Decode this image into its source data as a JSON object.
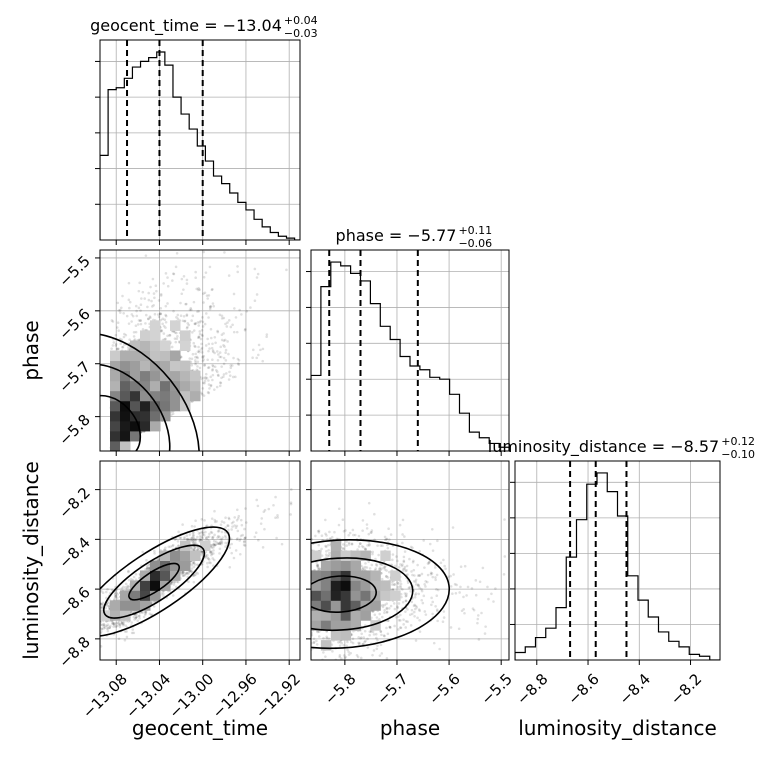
{
  "chart_data": {
    "type": "corner",
    "params": [
      "geocent_time",
      "phase",
      "luminosity_distance"
    ],
    "titles": {
      "geocent_time": {
        "prefix": "geocent_time = ",
        "value": "−13.04",
        "plus": "+0.04",
        "minus": "−0.03"
      },
      "phase": {
        "prefix": "phase = ",
        "value": "−5.77",
        "plus": "+0.11",
        "minus": "−0.06"
      },
      "luminosity_distance": {
        "prefix": "luminosity_distance = ",
        "value": "−8.57",
        "plus": "+0.12",
        "minus": "−0.10"
      }
    },
    "xlabels": {
      "geocent_time": "geocent_time",
      "phase": "phase",
      "luminosity_distance": "luminosity_distance"
    },
    "ylabels": {
      "phase": "phase",
      "luminosity_distance": "luminosity_distance"
    },
    "ranges": {
      "geocent_time": [
        -13.095,
        -12.91
      ],
      "phase": [
        -5.865,
        -5.485
      ],
      "luminosity_distance": [
        -8.885,
        -8.085
      ]
    },
    "ticks": {
      "geocent_time": [
        {
          "v": -13.08,
          "label": "−13.08"
        },
        {
          "v": -13.04,
          "label": "−13.04"
        },
        {
          "v": -13.0,
          "label": "−13.00"
        },
        {
          "v": -12.96,
          "label": "−12.96"
        },
        {
          "v": -12.92,
          "label": "−12.92"
        }
      ],
      "phase": [
        {
          "v": -5.8,
          "label": "−5.8"
        },
        {
          "v": -5.7,
          "label": "−5.7"
        },
        {
          "v": -5.6,
          "label": "−5.6"
        },
        {
          "v": -5.5,
          "label": "−5.5"
        }
      ],
      "luminosity_distance": [
        {
          "v": -8.8,
          "label": "−8.8"
        },
        {
          "v": -8.6,
          "label": "−8.6"
        },
        {
          "v": -8.4,
          "label": "−8.4"
        },
        {
          "v": -8.2,
          "label": "−8.2"
        }
      ]
    },
    "quantiles": {
      "geocent_time": [
        -13.07,
        -13.04,
        -13.0
      ],
      "phase": [
        -5.83,
        -5.77,
        -5.66
      ],
      "luminosity_distance": [
        -8.67,
        -8.57,
        -8.45
      ]
    },
    "histograms": {
      "geocent_time": {
        "edges_start": -13.095,
        "bin_width": 0.0075,
        "heights": [
          0.45,
          0.8,
          0.81,
          0.86,
          0.92,
          0.95,
          0.97,
          1.0,
          0.93,
          0.76,
          0.67,
          0.59,
          0.5,
          0.42,
          0.34,
          0.3,
          0.25,
          0.2,
          0.16,
          0.11,
          0.07,
          0.04,
          0.02,
          0.01,
          0.0
        ]
      },
      "phase": {
        "edges_start": -5.865,
        "bin_width": 0.019,
        "heights": [
          0.4,
          0.87,
          1.0,
          0.98,
          0.94,
          0.9,
          0.78,
          0.66,
          0.59,
          0.5,
          0.45,
          0.43,
          0.39,
          0.38,
          0.3,
          0.2,
          0.1,
          0.07,
          0.04,
          0.02
        ]
      },
      "luminosity_distance": {
        "edges_start": -8.885,
        "bin_width": 0.04,
        "heights": [
          0.04,
          0.07,
          0.12,
          0.17,
          0.28,
          0.55,
          0.75,
          0.94,
          1.0,
          0.9,
          0.77,
          0.45,
          0.32,
          0.23,
          0.15,
          0.1,
          0.07,
          0.03,
          0.02,
          0.0
        ]
      }
    },
    "joint": {
      "geocent_time_vs_phase": {
        "center": [
          -13.085,
          -5.82
        ],
        "spread": [
          0.03,
          0.11
        ],
        "rho": 0.45
      },
      "geocent_time_vs_luminosity_distance": {
        "center": [
          -13.045,
          -8.57
        ],
        "spread": [
          0.035,
          0.11
        ],
        "rho": 0.92
      },
      "phase_vs_luminosity_distance": {
        "center": [
          -5.81,
          -8.62
        ],
        "spread": [
          0.09,
          0.11
        ],
        "rho": 0.1
      }
    },
    "grid": true
  }
}
